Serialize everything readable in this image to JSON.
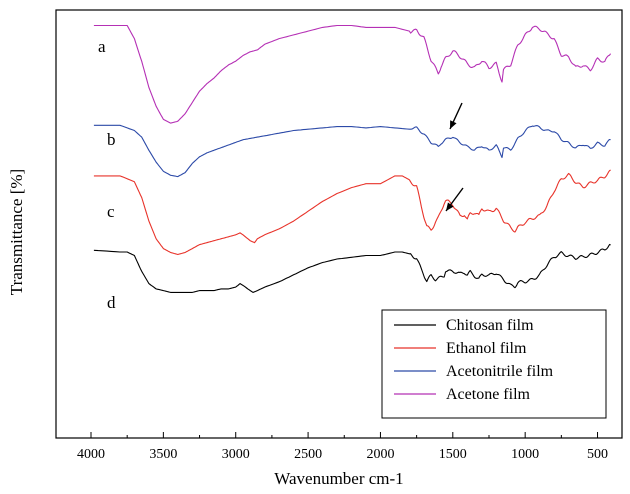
{
  "chart_data": {
    "type": "line",
    "xlabel": "Wavenumber cm-1",
    "ylabel": "Transmittance [%]",
    "xlim": [
      4000,
      400
    ],
    "x_reversed": true,
    "x_ticks": [
      4000,
      3500,
      3000,
      2500,
      2000,
      1500,
      1000,
      500
    ],
    "y_unit_ticks": false,
    "grid": false,
    "legend_position": "bottom-right",
    "colors": {
      "Chitosan film": "#000000",
      "Ethanol film": "#e8332a",
      "Acetonitrile film": "#2c4aa8",
      "Acetone film": "#b530b5"
    },
    "series": [
      {
        "name": "Acetone film",
        "curve_label": "a",
        "x": [
          3980,
          3750,
          3700,
          3650,
          3600,
          3550,
          3500,
          3450,
          3400,
          3350,
          3300,
          3250,
          3200,
          3150,
          3100,
          3050,
          3000,
          2950,
          2900,
          2850,
          2800,
          2700,
          2600,
          2500,
          2400,
          2300,
          2200,
          2100,
          2000,
          1900,
          1800,
          1750,
          1700,
          1650,
          1600,
          1580,
          1550,
          1500,
          1450,
          1400,
          1350,
          1300,
          1250,
          1200,
          1160,
          1150,
          1100,
          1050,
          1000,
          950,
          900,
          850,
          800,
          750,
          700,
          650,
          600,
          550,
          500,
          450,
          410
        ],
        "y": [
          0.93,
          0.93,
          0.86,
          0.74,
          0.6,
          0.5,
          0.43,
          0.41,
          0.42,
          0.46,
          0.52,
          0.58,
          0.62,
          0.65,
          0.69,
          0.72,
          0.74,
          0.77,
          0.79,
          0.8,
          0.83,
          0.86,
          0.88,
          0.9,
          0.92,
          0.93,
          0.93,
          0.92,
          0.92,
          0.92,
          0.9,
          0.91,
          0.86,
          0.74,
          0.68,
          0.72,
          0.76,
          0.79,
          0.76,
          0.73,
          0.71,
          0.74,
          0.7,
          0.73,
          0.64,
          0.7,
          0.72,
          0.82,
          0.88,
          0.93,
          0.91,
          0.88,
          0.86,
          0.78,
          0.76,
          0.7,
          0.72,
          0.7,
          0.75,
          0.73,
          0.78
        ]
      },
      {
        "name": "Acetonitrile film",
        "curve_label": "b",
        "x": [
          3980,
          3800,
          3700,
          3650,
          3600,
          3550,
          3500,
          3450,
          3400,
          3350,
          3300,
          3250,
          3200,
          3150,
          3100,
          3050,
          3000,
          2950,
          2900,
          2850,
          2800,
          2700,
          2600,
          2500,
          2400,
          2300,
          2200,
          2100,
          2000,
          1900,
          1800,
          1750,
          1700,
          1650,
          1600,
          1580,
          1550,
          1500,
          1450,
          1400,
          1350,
          1300,
          1250,
          1200,
          1160,
          1150,
          1100,
          1050,
          1000,
          950,
          900,
          850,
          800,
          750,
          700,
          650,
          600,
          550,
          500,
          450,
          410
        ],
        "y": [
          0.93,
          0.93,
          0.89,
          0.84,
          0.74,
          0.65,
          0.58,
          0.55,
          0.54,
          0.57,
          0.64,
          0.69,
          0.72,
          0.74,
          0.76,
          0.78,
          0.8,
          0.82,
          0.83,
          0.84,
          0.85,
          0.87,
          0.89,
          0.9,
          0.91,
          0.92,
          0.92,
          0.91,
          0.92,
          0.91,
          0.9,
          0.91,
          0.87,
          0.8,
          0.76,
          0.79,
          0.82,
          0.85,
          0.8,
          0.76,
          0.74,
          0.78,
          0.74,
          0.77,
          0.69,
          0.76,
          0.75,
          0.83,
          0.88,
          0.93,
          0.92,
          0.89,
          0.88,
          0.82,
          0.8,
          0.76,
          0.78,
          0.75,
          0.8,
          0.78,
          0.82
        ]
      },
      {
        "name": "Ethanol film",
        "curve_label": "c",
        "x": [
          3980,
          3800,
          3700,
          3650,
          3600,
          3550,
          3500,
          3450,
          3400,
          3350,
          3300,
          3250,
          3200,
          3150,
          3100,
          3050,
          3000,
          2970,
          2950,
          2900,
          2870,
          2850,
          2800,
          2700,
          2600,
          2500,
          2400,
          2300,
          2200,
          2100,
          2000,
          1900,
          1850,
          1800,
          1750,
          1700,
          1680,
          1650,
          1620,
          1600,
          1560,
          1550,
          1500,
          1450,
          1420,
          1400,
          1380,
          1350,
          1320,
          1300,
          1250,
          1200,
          1150,
          1100,
          1070,
          1050,
          1000,
          950,
          900,
          850,
          800,
          750,
          700,
          650,
          600,
          550,
          500,
          450,
          410
        ],
        "y": [
          0.93,
          0.93,
          0.9,
          0.82,
          0.7,
          0.61,
          0.56,
          0.54,
          0.53,
          0.54,
          0.56,
          0.58,
          0.59,
          0.6,
          0.61,
          0.62,
          0.63,
          0.64,
          0.63,
          0.6,
          0.59,
          0.61,
          0.63,
          0.66,
          0.7,
          0.75,
          0.8,
          0.84,
          0.87,
          0.89,
          0.89,
          0.93,
          0.93,
          0.91,
          0.87,
          0.72,
          0.67,
          0.66,
          0.7,
          0.72,
          0.79,
          0.8,
          0.78,
          0.73,
          0.74,
          0.71,
          0.74,
          0.74,
          0.72,
          0.76,
          0.75,
          0.77,
          0.7,
          0.66,
          0.65,
          0.67,
          0.7,
          0.71,
          0.72,
          0.78,
          0.86,
          0.91,
          0.93,
          0.9,
          0.88,
          0.89,
          0.9,
          0.93,
          0.96
        ]
      },
      {
        "name": "Chitosan film",
        "curve_label": "d",
        "x": [
          3980,
          3800,
          3750,
          3700,
          3650,
          3600,
          3550,
          3500,
          3450,
          3400,
          3350,
          3300,
          3250,
          3200,
          3150,
          3100,
          3050,
          3000,
          2970,
          2950,
          2900,
          2880,
          2850,
          2800,
          2700,
          2600,
          2500,
          2400,
          2300,
          2200,
          2100,
          2000,
          1900,
          1850,
          1800,
          1750,
          1700,
          1680,
          1650,
          1620,
          1600,
          1560,
          1550,
          1500,
          1450,
          1420,
          1400,
          1380,
          1350,
          1320,
          1300,
          1250,
          1200,
          1150,
          1100,
          1070,
          1050,
          1000,
          950,
          900,
          850,
          800,
          750,
          700,
          650,
          600,
          550,
          500,
          450,
          410
        ],
        "y": [
          0.94,
          0.93,
          0.93,
          0.91,
          0.82,
          0.75,
          0.72,
          0.71,
          0.7,
          0.7,
          0.7,
          0.7,
          0.71,
          0.71,
          0.71,
          0.72,
          0.72,
          0.73,
          0.75,
          0.74,
          0.71,
          0.7,
          0.71,
          0.73,
          0.76,
          0.8,
          0.84,
          0.87,
          0.89,
          0.9,
          0.91,
          0.91,
          0.93,
          0.93,
          0.92,
          0.9,
          0.8,
          0.76,
          0.79,
          0.77,
          0.78,
          0.8,
          0.83,
          0.82,
          0.8,
          0.81,
          0.8,
          0.82,
          0.8,
          0.78,
          0.8,
          0.79,
          0.81,
          0.78,
          0.74,
          0.73,
          0.75,
          0.76,
          0.78,
          0.8,
          0.85,
          0.9,
          0.93,
          0.91,
          0.89,
          0.9,
          0.92,
          0.93,
          0.94,
          0.97
        ]
      }
    ],
    "arrows": [
      {
        "series": "Acetonitrile film",
        "x": 1500
      },
      {
        "series": "Ethanol film",
        "x": 1560
      }
    ],
    "legend": [
      "Chitosan film",
      "Ethanol film",
      "Acetonitrile film",
      "Acetone film"
    ]
  }
}
